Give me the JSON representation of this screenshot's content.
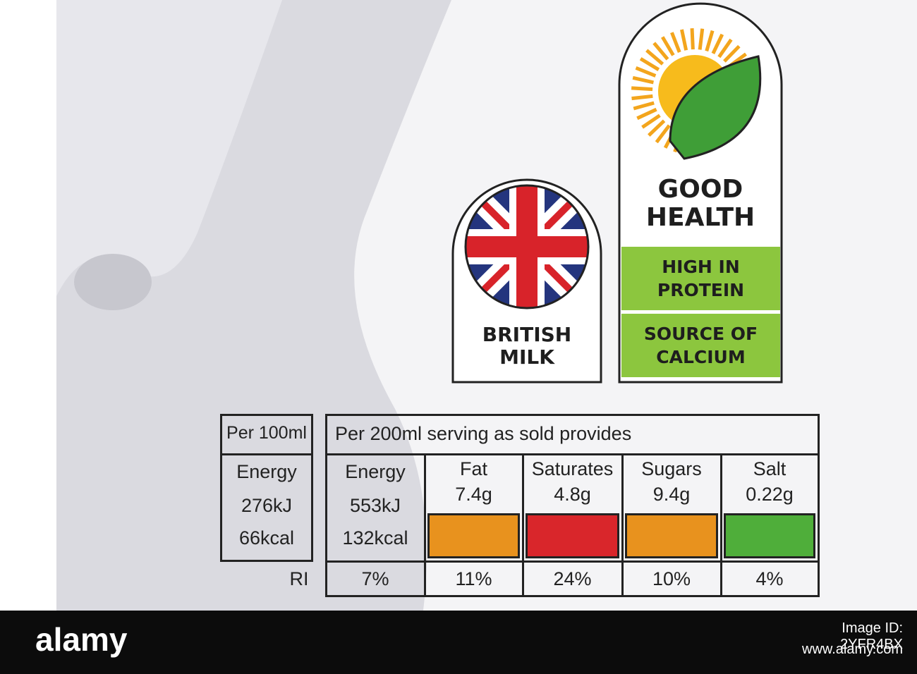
{
  "badges": {
    "british": {
      "lines": [
        "BRITISH",
        "MILK"
      ]
    },
    "health": {
      "title_lines": [
        "GOOD",
        "HEALTH"
      ],
      "claims": [
        {
          "lines": [
            "HIGH IN",
            "PROTEIN"
          ]
        },
        {
          "lines": [
            "SOURCE OF",
            "CALCIUM"
          ]
        }
      ],
      "claim_color": "#8cc63e"
    }
  },
  "nutrition": {
    "per100": {
      "header": "Per 100ml",
      "label": "Energy",
      "kj": "276kJ",
      "kcal": "66kcal"
    },
    "serving": {
      "header": "Per 200ml serving as sold provides",
      "energy": {
        "label": "Energy",
        "kj": "553kJ",
        "kcal": "132kcal",
        "ri": "7%"
      },
      "nutrients": [
        {
          "name": "Fat",
          "amount": "7.4g",
          "color": "#e8921e",
          "ri": "11%"
        },
        {
          "name": "Saturates",
          "amount": "4.8g",
          "color": "#d9262b",
          "ri": "24%"
        },
        {
          "name": "Sugars",
          "amount": "9.4g",
          "color": "#e8921e",
          "ri": "10%"
        },
        {
          "name": "Salt",
          "amount": "0.22g",
          "color": "#4fae3a",
          "ri": "4%"
        }
      ]
    },
    "ri_label": "RI"
  },
  "watermark": {
    "brand": "alamy",
    "image_id": "Image ID: 2YFR4BX",
    "url": "www.alamy.com"
  }
}
